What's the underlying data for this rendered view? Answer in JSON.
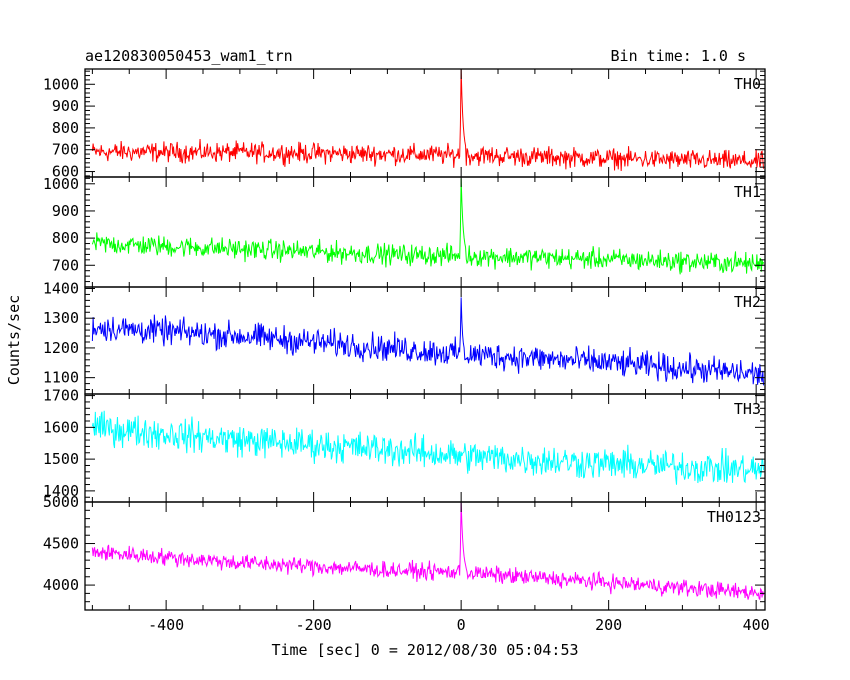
{
  "header": {
    "title": "ae120830050453_wam1_trn",
    "bin_time": "Bin time: 1.0 s"
  },
  "chart_data": {
    "type": "line",
    "xlabel": "Time [sec] 0 = 2012/08/30 05:04:53",
    "ylabel": "Counts/sec",
    "xlim": [
      -510,
      412
    ],
    "x_ticks": [
      -400,
      -200,
      0,
      200,
      400
    ],
    "x_range_data": [
      -500,
      410
    ],
    "series": [
      {
        "name": "TH0",
        "color": "#ff0000",
        "ylim": [
          575,
          1070
        ],
        "y_ticks": [
          600,
          700,
          800,
          900,
          1000
        ],
        "baseline": [
          [
            -500,
            690
          ],
          [
            -300,
            688
          ],
          [
            -100,
            680
          ],
          [
            0,
            675
          ],
          [
            200,
            660
          ],
          [
            410,
            645
          ]
        ],
        "noise_amplitude": 50,
        "burst": {
          "peak_time": 0,
          "peak_value": 1070,
          "width_s": 6
        }
      },
      {
        "name": "TH1",
        "color": "#00ff00",
        "ylim": [
          620,
          1025
        ],
        "y_ticks": [
          700,
          800,
          900,
          1000
        ],
        "baseline": [
          [
            -500,
            780
          ],
          [
            -300,
            760
          ],
          [
            -100,
            740
          ],
          [
            0,
            735
          ],
          [
            200,
            722
          ],
          [
            410,
            705
          ]
        ],
        "noise_amplitude": 42,
        "burst": {
          "peak_time": 0,
          "peak_value": 1020,
          "width_s": 6
        }
      },
      {
        "name": "TH2",
        "color": "#0000ff",
        "ylim": [
          1045,
          1405
        ],
        "y_ticks": [
          1100,
          1200,
          1300,
          1400
        ],
        "baseline": [
          [
            -500,
            1270
          ],
          [
            -300,
            1240
          ],
          [
            -100,
            1200
          ],
          [
            0,
            1180
          ],
          [
            200,
            1150
          ],
          [
            410,
            1110
          ]
        ],
        "noise_amplitude": 50,
        "burst": {
          "peak_time": 0,
          "peak_value": 1370,
          "width_s": 4
        }
      },
      {
        "name": "TH3",
        "color": "#00ffff",
        "ylim": [
          1365,
          1705
        ],
        "y_ticks": [
          1400,
          1500,
          1600,
          1700
        ],
        "baseline": [
          [
            -500,
            1600
          ],
          [
            -300,
            1560
          ],
          [
            -100,
            1530
          ],
          [
            0,
            1510
          ],
          [
            200,
            1485
          ],
          [
            410,
            1465
          ]
        ],
        "noise_amplitude": 55,
        "burst": null
      },
      {
        "name": "TH0123",
        "color": "#ff00ff",
        "ylim": [
          3700,
          5000
        ],
        "y_ticks": [
          4000,
          4500,
          5000
        ],
        "baseline": [
          [
            -500,
            4400
          ],
          [
            -300,
            4270
          ],
          [
            -100,
            4180
          ],
          [
            0,
            4150
          ],
          [
            200,
            4030
          ],
          [
            410,
            3900
          ]
        ],
        "noise_amplitude": 110,
        "burst": {
          "peak_time": 0,
          "peak_value": 5000,
          "width_s": 6
        }
      }
    ]
  }
}
